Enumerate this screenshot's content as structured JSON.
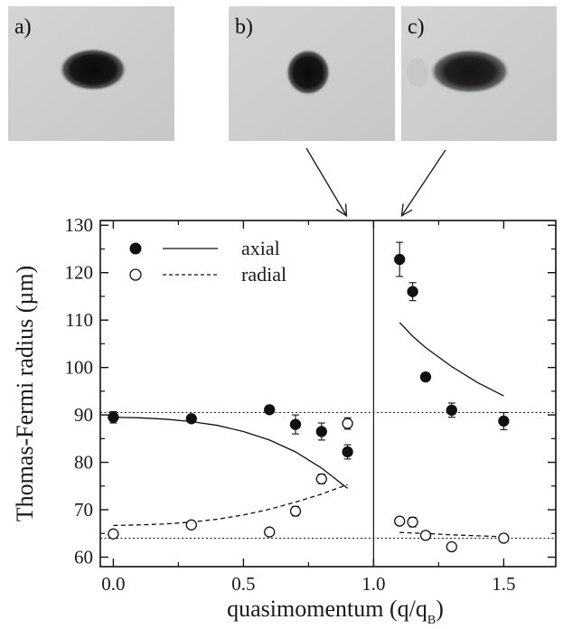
{
  "panels": [
    {
      "label": "a)",
      "blob": "elongated"
    },
    {
      "label": "b)",
      "blob": "round"
    },
    {
      "label": "c)",
      "blob": "fringed"
    }
  ],
  "chart_data": {
    "type": "scatter",
    "xlabel": "quasimomentum (q/q",
    "xlabel_sub": "B",
    "xlabel_end": ")",
    "ylabel": "Thomas-Fermi radius (µm)",
    "xlim": [
      -0.05,
      1.7
    ],
    "ylim": [
      58,
      131
    ],
    "xticks": [
      0.0,
      0.5,
      1.0,
      1.5
    ],
    "xtick_labels": [
      "0.0",
      "0.5",
      "1.0",
      "1.5"
    ],
    "yticks": [
      60,
      70,
      80,
      90,
      100,
      110,
      120,
      130
    ],
    "ytick_labels": [
      "60",
      "70",
      "80",
      "90",
      "100",
      "110",
      "120",
      "130"
    ],
    "vertical_line_x": 1.0,
    "reference_lines": [
      90.5,
      64
    ],
    "legend": [
      {
        "marker": "filled",
        "line": "solid",
        "label": "axial"
      },
      {
        "marker": "open",
        "line": "dashed",
        "label": "radial"
      }
    ],
    "series": [
      {
        "name": "axial",
        "marker": "filled",
        "points": [
          {
            "x": 0.0,
            "y": 89.5,
            "err": 1.2
          },
          {
            "x": 0.3,
            "y": 89.2,
            "err": 0.5
          },
          {
            "x": 0.6,
            "y": 91.1,
            "err": 0.8
          },
          {
            "x": 0.7,
            "y": 88.0,
            "err": 2.0
          },
          {
            "x": 0.8,
            "y": 86.5,
            "err": 1.8
          },
          {
            "x": 0.9,
            "y": 82.2,
            "err": 1.5
          },
          {
            "x": 1.1,
            "y": 122.8,
            "err": 3.6
          },
          {
            "x": 1.15,
            "y": 116.0,
            "err": 1.9
          },
          {
            "x": 1.2,
            "y": 98.0,
            "err": 0.8
          },
          {
            "x": 1.3,
            "y": 91.0,
            "err": 1.5
          },
          {
            "x": 1.5,
            "y": 88.7,
            "err": 1.8
          }
        ]
      },
      {
        "name": "radial",
        "marker": "open",
        "points": [
          {
            "x": 0.0,
            "y": 64.9,
            "err": 0.6
          },
          {
            "x": 0.3,
            "y": 66.8,
            "err": 0.5
          },
          {
            "x": 0.6,
            "y": 65.3,
            "err": 0.5
          },
          {
            "x": 0.7,
            "y": 69.7,
            "err": 1.0
          },
          {
            "x": 0.8,
            "y": 76.5,
            "err": 1.0
          },
          {
            "x": 0.9,
            "y": 88.2,
            "err": 1.2
          },
          {
            "x": 1.1,
            "y": 67.6,
            "err": 0.5
          },
          {
            "x": 1.15,
            "y": 67.4,
            "err": 1.0
          },
          {
            "x": 1.2,
            "y": 64.6,
            "err": 0.6
          },
          {
            "x": 1.3,
            "y": 62.2,
            "err": 0.8
          },
          {
            "x": 1.5,
            "y": 64.0,
            "err": 0.7
          }
        ]
      }
    ],
    "curves": [
      {
        "name": "axial",
        "style": "solid",
        "points": [
          [
            0.0,
            89.5
          ],
          [
            0.1,
            89.4
          ],
          [
            0.2,
            89.1
          ],
          [
            0.3,
            88.6
          ],
          [
            0.4,
            87.8
          ],
          [
            0.5,
            86.5
          ],
          [
            0.6,
            84.7
          ],
          [
            0.7,
            82.2
          ],
          [
            0.8,
            78.8
          ],
          [
            0.9,
            74.5
          ]
        ]
      },
      {
        "name": "radial",
        "style": "dashed",
        "points": [
          [
            0.0,
            66.7
          ],
          [
            0.1,
            66.8
          ],
          [
            0.2,
            67.0
          ],
          [
            0.3,
            67.4
          ],
          [
            0.4,
            68.0
          ],
          [
            0.5,
            68.9
          ],
          [
            0.6,
            70.1
          ],
          [
            0.7,
            71.6
          ],
          [
            0.8,
            73.3
          ],
          [
            0.9,
            75.3
          ]
        ]
      },
      {
        "name": "axial",
        "style": "solid",
        "points": [
          [
            1.1,
            109.5
          ],
          [
            1.15,
            106.6
          ],
          [
            1.2,
            104.2
          ],
          [
            1.3,
            100.2
          ],
          [
            1.4,
            96.8
          ],
          [
            1.5,
            94.0
          ]
        ]
      },
      {
        "name": "radial",
        "style": "dashed",
        "points": [
          [
            1.1,
            65.2
          ],
          [
            1.2,
            65.0
          ],
          [
            1.3,
            64.7
          ],
          [
            1.4,
            64.5
          ],
          [
            1.5,
            64.3
          ]
        ]
      }
    ]
  }
}
